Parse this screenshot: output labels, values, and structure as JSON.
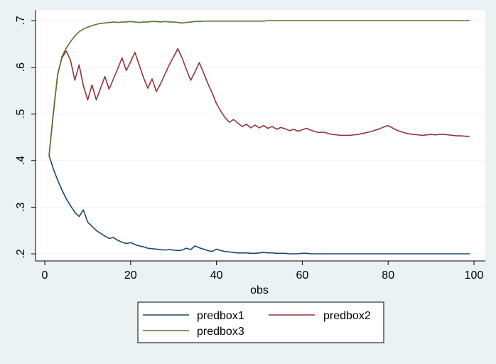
{
  "chart_data": {
    "type": "line",
    "xlabel": "obs",
    "ylabel": "",
    "xlim": [
      0,
      100
    ],
    "ylim": [
      0.2,
      0.7
    ],
    "xticks": [
      0,
      20,
      40,
      60,
      80,
      100
    ],
    "xtick_labels": [
      "0",
      "20",
      "40",
      "60",
      "80",
      "100"
    ],
    "yticks": [
      0.2,
      0.3,
      0.4,
      0.5,
      0.6,
      0.7
    ],
    "ytick_labels": [
      ".2",
      ".3",
      ".4",
      ".5",
      ".6",
      ".7"
    ],
    "grid": true,
    "legend_position": "bottom-center",
    "series": [
      {
        "name": "predbox1",
        "color": "#1a476f",
        "x": [
          1,
          2,
          3,
          4,
          5,
          6,
          7,
          8,
          9,
          10,
          11,
          12,
          13,
          14,
          15,
          16,
          17,
          18,
          19,
          20,
          21,
          22,
          23,
          24,
          25,
          26,
          27,
          28,
          29,
          30,
          31,
          32,
          33,
          34,
          35,
          36,
          37,
          38,
          39,
          40,
          41,
          42,
          43,
          44,
          45,
          46,
          47,
          48,
          49,
          50,
          51,
          52,
          53,
          54,
          55,
          56,
          57,
          58,
          59,
          60,
          61,
          62,
          63,
          64,
          65,
          66,
          67,
          68,
          69,
          70,
          71,
          72,
          73,
          74,
          75,
          76,
          77,
          78,
          79,
          80,
          81,
          82,
          83,
          84,
          85,
          86,
          87,
          88,
          89,
          90,
          91,
          92,
          93,
          94,
          95,
          96,
          97,
          98,
          99
        ],
        "values": [
          0.411,
          0.382,
          0.358,
          0.337,
          0.318,
          0.303,
          0.289,
          0.28,
          0.294,
          0.268,
          0.259,
          0.25,
          0.244,
          0.238,
          0.233,
          0.235,
          0.229,
          0.225,
          0.222,
          0.224,
          0.22,
          0.217,
          0.215,
          0.212,
          0.211,
          0.21,
          0.209,
          0.208,
          0.209,
          0.208,
          0.207,
          0.208,
          0.212,
          0.209,
          0.217,
          0.213,
          0.21,
          0.207,
          0.205,
          0.21,
          0.207,
          0.205,
          0.204,
          0.203,
          0.202,
          0.202,
          0.202,
          0.201,
          0.201,
          0.202,
          0.203,
          0.202,
          0.202,
          0.201,
          0.201,
          0.201,
          0.2,
          0.2,
          0.2,
          0.201,
          0.201,
          0.2,
          0.2,
          0.2,
          0.2,
          0.2,
          0.2,
          0.2,
          0.2,
          0.2,
          0.2,
          0.2,
          0.2,
          0.2,
          0.2,
          0.2,
          0.2,
          0.2,
          0.2,
          0.2,
          0.2,
          0.2,
          0.2,
          0.2,
          0.2,
          0.2,
          0.2,
          0.2,
          0.2,
          0.2,
          0.2,
          0.2,
          0.2,
          0.2,
          0.2,
          0.2,
          0.2,
          0.2,
          0.2
        ]
      },
      {
        "name": "predbox2",
        "color": "#90353b",
        "x": [
          1,
          2,
          3,
          4,
          5,
          6,
          7,
          8,
          9,
          10,
          11,
          12,
          13,
          14,
          15,
          16,
          17,
          18,
          19,
          20,
          21,
          22,
          23,
          24,
          25,
          26,
          27,
          28,
          29,
          30,
          31,
          32,
          33,
          34,
          35,
          36,
          37,
          38,
          39,
          40,
          41,
          42,
          43,
          44,
          45,
          46,
          47,
          48,
          49,
          50,
          51,
          52,
          53,
          54,
          55,
          56,
          57,
          58,
          59,
          60,
          61,
          62,
          63,
          64,
          65,
          66,
          67,
          68,
          69,
          70,
          71,
          72,
          73,
          74,
          75,
          76,
          77,
          78,
          79,
          80,
          81,
          82,
          83,
          84,
          85,
          86,
          87,
          88,
          89,
          90,
          91,
          92,
          93,
          94,
          95,
          96,
          97,
          98,
          99
        ],
        "values": [
          0.411,
          0.5,
          0.585,
          0.62,
          0.635,
          0.615,
          0.572,
          0.605,
          0.56,
          0.53,
          0.562,
          0.53,
          0.555,
          0.58,
          0.553,
          0.575,
          0.597,
          0.62,
          0.593,
          0.612,
          0.632,
          0.605,
          0.578,
          0.555,
          0.575,
          0.548,
          0.565,
          0.585,
          0.605,
          0.622,
          0.64,
          0.62,
          0.595,
          0.572,
          0.59,
          0.61,
          0.588,
          0.565,
          0.545,
          0.522,
          0.506,
          0.492,
          0.482,
          0.488,
          0.48,
          0.473,
          0.478,
          0.47,
          0.476,
          0.47,
          0.475,
          0.469,
          0.473,
          0.467,
          0.471,
          0.468,
          0.464,
          0.467,
          0.463,
          0.466,
          0.469,
          0.465,
          0.462,
          0.46,
          0.461,
          0.458,
          0.456,
          0.455,
          0.454,
          0.454,
          0.454,
          0.455,
          0.456,
          0.458,
          0.46,
          0.462,
          0.465,
          0.468,
          0.472,
          0.475,
          0.47,
          0.465,
          0.462,
          0.459,
          0.457,
          0.456,
          0.455,
          0.454,
          0.455,
          0.456,
          0.455,
          0.456,
          0.456,
          0.455,
          0.454,
          0.453,
          0.453,
          0.452,
          0.452
        ]
      },
      {
        "name": "predbox3",
        "color": "#55752f",
        "x": [
          1,
          2,
          3,
          4,
          5,
          6,
          7,
          8,
          9,
          10,
          11,
          12,
          13,
          14,
          15,
          16,
          17,
          18,
          19,
          20,
          21,
          22,
          23,
          24,
          25,
          26,
          27,
          28,
          29,
          30,
          31,
          32,
          33,
          34,
          35,
          36,
          37,
          38,
          39,
          40,
          41,
          42,
          43,
          44,
          45,
          46,
          47,
          48,
          49,
          50,
          51,
          52,
          53,
          54,
          55,
          56,
          57,
          58,
          59,
          60,
          61,
          62,
          63,
          64,
          65,
          66,
          67,
          68,
          69,
          70,
          71,
          72,
          73,
          74,
          75,
          76,
          77,
          78,
          79,
          80,
          81,
          82,
          83,
          84,
          85,
          86,
          87,
          88,
          89,
          90,
          91,
          92,
          93,
          94,
          95,
          96,
          97,
          98,
          99
        ],
        "values": [
          0.411,
          0.503,
          0.583,
          0.623,
          0.641,
          0.655,
          0.667,
          0.676,
          0.682,
          0.686,
          0.689,
          0.692,
          0.694,
          0.695,
          0.696,
          0.697,
          0.696,
          0.697,
          0.697,
          0.698,
          0.697,
          0.696,
          0.697,
          0.697,
          0.698,
          0.698,
          0.697,
          0.698,
          0.697,
          0.697,
          0.696,
          0.695,
          0.696,
          0.697,
          0.698,
          0.698,
          0.699,
          0.699,
          0.699,
          0.699,
          0.699,
          0.699,
          0.699,
          0.699,
          0.699,
          0.699,
          0.699,
          0.699,
          0.699,
          0.699,
          0.699,
          0.7,
          0.7,
          0.7,
          0.7,
          0.7,
          0.7,
          0.7,
          0.7,
          0.7,
          0.7,
          0.7,
          0.7,
          0.7,
          0.7,
          0.7,
          0.7,
          0.7,
          0.7,
          0.7,
          0.7,
          0.7,
          0.7,
          0.7,
          0.7,
          0.7,
          0.7,
          0.7,
          0.7,
          0.7,
          0.7,
          0.7,
          0.7,
          0.7,
          0.7,
          0.7,
          0.7,
          0.7,
          0.7,
          0.7,
          0.7,
          0.7,
          0.7,
          0.7,
          0.7,
          0.7,
          0.7,
          0.7,
          0.7
        ]
      }
    ]
  },
  "colors": {
    "page_background": "#eaf2f3",
    "plot_background": "#ffffff",
    "grid": "#eaf2f3",
    "axis": "#000000"
  }
}
